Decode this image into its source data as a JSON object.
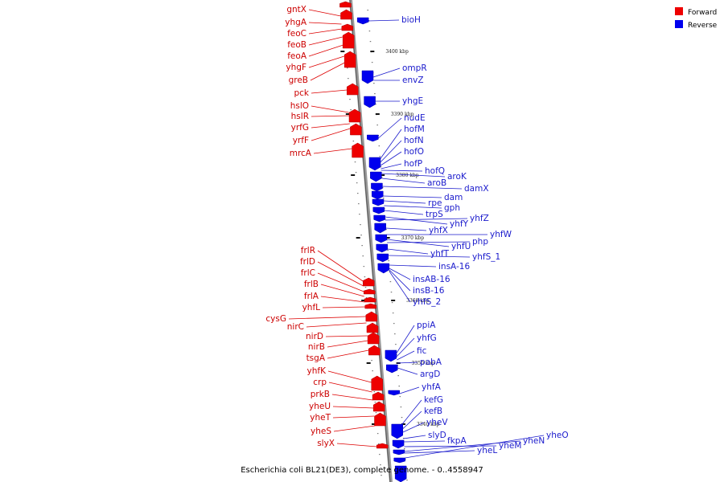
{
  "title": "Escherichia coli BL21(DE3), complete genome. - 0..4558947",
  "legend": [
    {
      "label": "Forward",
      "color": "#ee0000"
    },
    {
      "label": "Reverse",
      "color": "#0000ee"
    }
  ],
  "ticks": [
    "3400 kbp",
    "3390 kbp",
    "3380 kbp",
    "3370 kbp",
    "3360 kbp",
    "3350 kbp",
    "3340 kbp"
  ],
  "forward_genes": [
    "gntX",
    "yhgA",
    "feoC",
    "feoB",
    "feoA",
    "yhgF",
    "greB",
    "pck",
    "hslO",
    "hslR",
    "yrfG",
    "yrfF",
    "mrcA",
    "frlR",
    "frlD",
    "frlC",
    "frlB",
    "frlA",
    "yhfL",
    "cysG",
    "nirC",
    "nirD",
    "nirB",
    "tsgA",
    "yhfK",
    "crp",
    "prkB",
    "yheU",
    "yheT",
    "yheS",
    "slyX"
  ],
  "reverse_genes": [
    "bioH",
    "ompR",
    "envZ",
    "yhgE",
    "nudE",
    "hofM",
    "hofN",
    "hofO",
    "hofP",
    "hofQ",
    "aroK",
    "aroB",
    "damX",
    "dam",
    "rpe",
    "gph",
    "trpS",
    "yhfY",
    "yhfZ",
    "yhfX",
    "yhfW",
    "yhfU",
    "php",
    "yhfT",
    "yhfS_1",
    "insA-16",
    "insAB-16",
    "insB-16",
    "yhfS_2",
    "ppiA",
    "yhfG",
    "fic",
    "pabA",
    "argD",
    "yhfA",
    "kefG",
    "kefB",
    "yheV",
    "slyD",
    "fkpA",
    "yheM",
    "yheN",
    "yheO",
    "yheL"
  ]
}
